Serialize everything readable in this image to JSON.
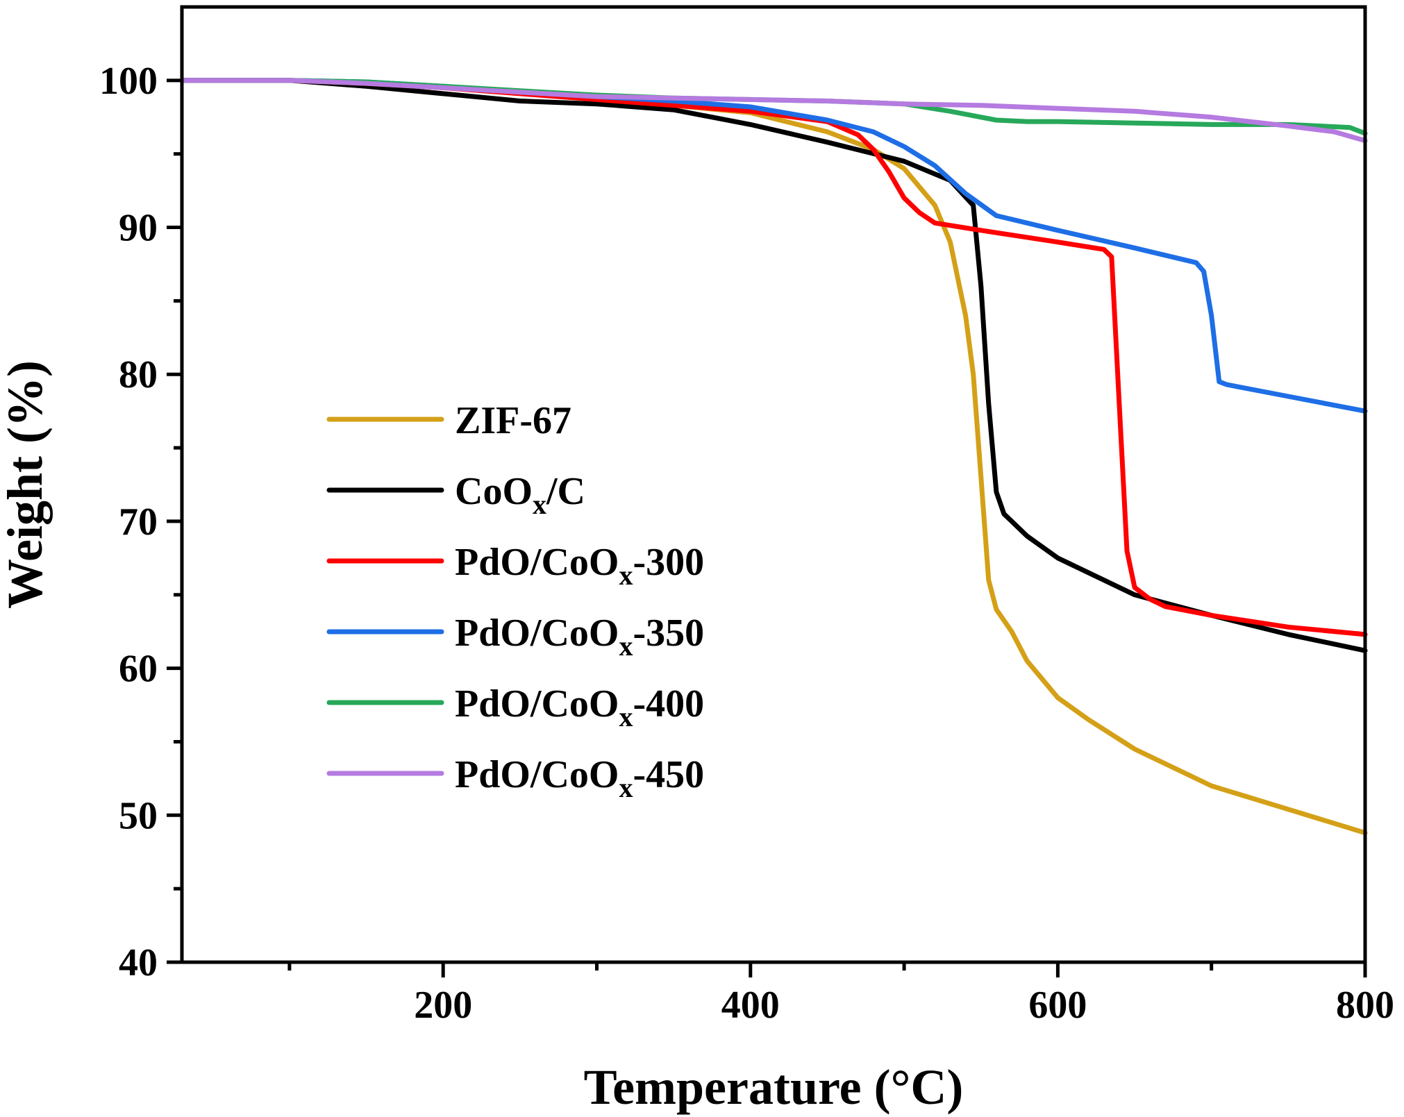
{
  "chart_data": {
    "type": "line",
    "xlabel": "Temperature (°C)",
    "ylabel": "Weight (%)",
    "xlim": [
      30,
      800
    ],
    "ylim": [
      40,
      105
    ],
    "x_ticks": [
      200,
      400,
      600,
      800
    ],
    "y_ticks": [
      40,
      50,
      60,
      70,
      80,
      90,
      100
    ],
    "grid": false,
    "legend_position": "center-left",
    "series": [
      {
        "name": "ZIF-67",
        "name_parts": [
          "ZIF-67",
          "",
          ""
        ],
        "color": "#D4A017",
        "x": [
          30,
          100,
          150,
          200,
          250,
          300,
          350,
          400,
          450,
          480,
          500,
          520,
          530,
          540,
          545,
          550,
          555,
          560,
          570,
          580,
          600,
          620,
          650,
          700,
          750,
          800
        ],
        "y": [
          100,
          100,
          99.8,
          99.5,
          99.2,
          98.8,
          98.3,
          97.8,
          96.5,
          95.3,
          94,
          91.5,
          89,
          84,
          80,
          73,
          66,
          64,
          62.5,
          60.5,
          58,
          56.5,
          54.5,
          52,
          50.4,
          48.8
        ]
      },
      {
        "name": "CoOx/C",
        "name_parts": [
          "CoO",
          "x",
          "/C"
        ],
        "color": "#000000",
        "x": [
          30,
          100,
          150,
          200,
          250,
          300,
          350,
          400,
          450,
          500,
          530,
          545,
          550,
          555,
          560,
          565,
          570,
          580,
          600,
          650,
          700,
          750,
          800
        ],
        "y": [
          100,
          100,
          99.6,
          99.1,
          98.6,
          98.4,
          98,
          97,
          95.8,
          94.5,
          93.2,
          91.5,
          86,
          78,
          72,
          70.5,
          70,
          69,
          67.5,
          65,
          63.6,
          62.3,
          61.2
        ]
      },
      {
        "name": "PdO/CoOx-300",
        "name_parts": [
          "PdO/CoO",
          "x",
          "-300"
        ],
        "color": "#FF0000",
        "x": [
          30,
          100,
          150,
          200,
          250,
          300,
          350,
          400,
          450,
          470,
          480,
          490,
          500,
          510,
          520,
          550,
          600,
          630,
          635,
          640,
          645,
          650,
          660,
          670,
          700,
          750,
          800
        ],
        "y": [
          100,
          100,
          99.8,
          99.5,
          99.1,
          98.7,
          98.3,
          97.9,
          97.2,
          96.3,
          95.3,
          93.8,
          92,
          91,
          90.3,
          89.8,
          89,
          88.5,
          88,
          78,
          68,
          65.5,
          64.7,
          64.2,
          63.6,
          62.8,
          62.3
        ]
      },
      {
        "name": "PdO/CoOx-350",
        "name_parts": [
          "PdO/CoO",
          "x",
          "-350"
        ],
        "color": "#1E6EE6",
        "x": [
          30,
          100,
          150,
          200,
          250,
          300,
          350,
          400,
          450,
          480,
          500,
          520,
          540,
          560,
          600,
          650,
          690,
          695,
          700,
          705,
          710,
          750,
          800
        ],
        "y": [
          100,
          100,
          99.9,
          99.6,
          99.2,
          98.9,
          98.6,
          98.2,
          97.3,
          96.5,
          95.5,
          94.2,
          92.3,
          90.8,
          89.8,
          88.6,
          87.6,
          87,
          84,
          79.5,
          79.3,
          78.5,
          77.5
        ]
      },
      {
        "name": "PdO/CoOx-400",
        "name_parts": [
          "PdO/CoO",
          "x",
          "-400"
        ],
        "color": "#27A85A",
        "x": [
          30,
          100,
          150,
          200,
          250,
          300,
          350,
          400,
          450,
          500,
          530,
          560,
          580,
          600,
          650,
          700,
          750,
          790,
          800
        ],
        "y": [
          100,
          100,
          99.9,
          99.6,
          99.3,
          99,
          98.8,
          98.7,
          98.6,
          98.4,
          97.9,
          97.3,
          97.2,
          97.2,
          97.1,
          97,
          97,
          96.8,
          96.4
        ]
      },
      {
        "name": "PdO/CoOx-450",
        "name_parts": [
          "PdO/CoO",
          "x",
          "-450"
        ],
        "color": "#B57BE0",
        "x": [
          30,
          100,
          150,
          200,
          250,
          300,
          350,
          400,
          450,
          500,
          550,
          600,
          650,
          700,
          750,
          780,
          800
        ],
        "y": [
          100,
          100,
          99.8,
          99.5,
          99.2,
          98.9,
          98.8,
          98.7,
          98.6,
          98.4,
          98.3,
          98.1,
          97.9,
          97.5,
          96.9,
          96.5,
          95.9
        ]
      }
    ]
  }
}
